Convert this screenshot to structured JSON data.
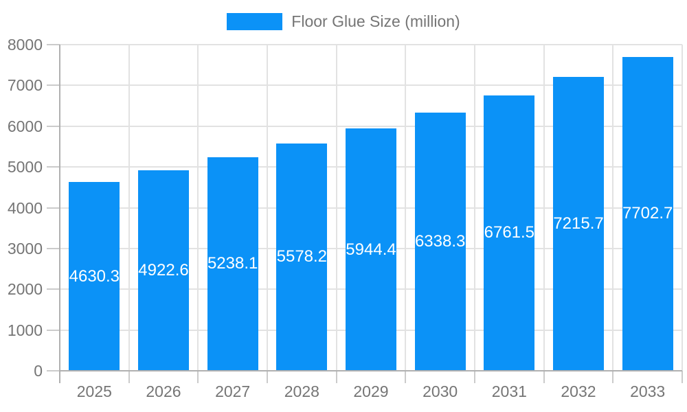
{
  "chart_data": {
    "type": "bar",
    "title": "",
    "legend": {
      "label": "Floor Glue Size (million)",
      "position": "top-center"
    },
    "categories": [
      "2025",
      "2026",
      "2027",
      "2028",
      "2029",
      "2030",
      "2031",
      "2032",
      "2033"
    ],
    "series": [
      {
        "name": "Floor Glue Size (million)",
        "values": [
          4630.3,
          4922.6,
          5238.1,
          5578.2,
          5944.4,
          6338.3,
          6761.5,
          7215.7,
          7702.7
        ]
      }
    ],
    "value_labels": [
      "4630.3",
      "4922.6",
      "5238.1",
      "5578.2",
      "5944.4",
      "6338.3",
      "6761.5",
      "7215.7",
      "7702.7"
    ],
    "value_label_position": "inside-middle",
    "xlabel": "",
    "ylabel": "",
    "ylim": [
      0,
      8000
    ],
    "ytick_step": 1000,
    "yticks": [
      "0",
      "1000",
      "2000",
      "3000",
      "4000",
      "5000",
      "6000",
      "7000",
      "8000"
    ],
    "grid": true
  },
  "colors": {
    "bar": "#0b92f7",
    "axis_text": "#757575",
    "grid_line": "#e2e2e2",
    "axis_line": "#b0b0b0",
    "tick_mark": "#cbcbcb",
    "value_label": "#ffffff",
    "background": "#ffffff"
  }
}
